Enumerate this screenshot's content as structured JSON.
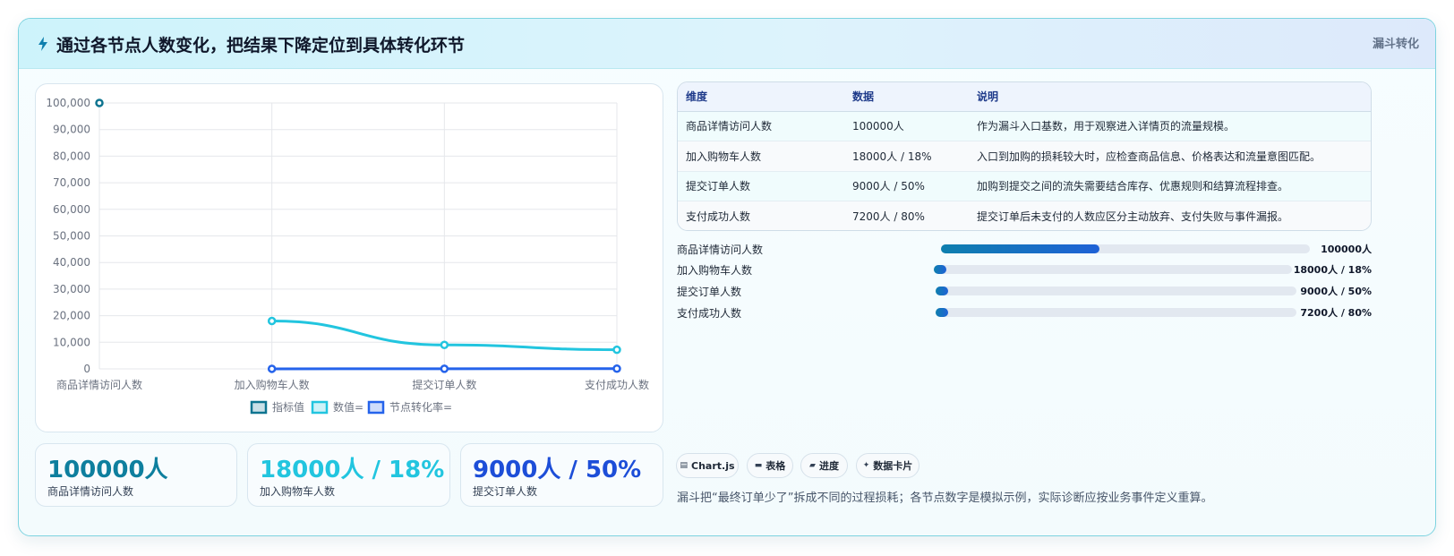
{
  "header": {
    "icon": "lightning-icon",
    "title": "通过各节点人数变化，把结果下降定位到具体转化环节",
    "tag": "漏斗转化"
  },
  "chart_data": {
    "type": "line",
    "categories": [
      "商品详情访问人数",
      "加入购物车人数",
      "提交订单人数",
      "支付成功人数"
    ],
    "series": [
      {
        "name": "指标值",
        "values": [
          100000,
          null,
          null,
          null
        ],
        "color": "#0e7490"
      },
      {
        "name": "数值=",
        "values": [
          null,
          18000,
          9000,
          7200
        ],
        "color": "#22c5df"
      },
      {
        "name": "节点转化率=",
        "values": [
          null,
          18,
          50,
          80
        ],
        "color": "#2563eb"
      }
    ],
    "y_ticks": [
      "0",
      "10,000",
      "20,000",
      "30,000",
      "40,000",
      "50,000",
      "60,000",
      "70,000",
      "80,000",
      "90,000",
      "100,000"
    ],
    "ylim": [
      0,
      100000
    ],
    "grid": true,
    "legend": "bottom"
  },
  "stats": [
    {
      "value": "100000人",
      "label": "商品详情访问人数",
      "color": "#0e7f9e"
    },
    {
      "value": "18000人 / 18%",
      "label": "加入购物车人数",
      "color": "#22c5df"
    },
    {
      "value": "9000人 / 50%",
      "label": "提交订单人数",
      "color": "#1d4ed8"
    }
  ],
  "table": {
    "headers": [
      "维度",
      "数据",
      "说明"
    ],
    "rows": [
      [
        "商品详情访问人数",
        "100000人",
        "作为漏斗入口基数，用于观察进入详情页的流量规模。"
      ],
      [
        "加入购物车人数",
        "18000人 / 18%",
        "入口到加购的损耗较大时，应检查商品信息、价格表达和流量意图匹配。"
      ],
      [
        "提交订单人数",
        "9000人 / 50%",
        "加购到提交之间的流失需要结合库存、优惠规则和结算流程排查。"
      ],
      [
        "支付成功人数",
        "7200人 / 80%",
        "提交订单后未支付的人数应区分主动放弃、支付失败与事件漏报。"
      ]
    ]
  },
  "progress": [
    {
      "label": "商品详情访问人数",
      "value": "100000人",
      "fraction": 0.43
    },
    {
      "label": "加入购物车人数",
      "value": "18000人 / 18%",
      "fraction": 0.033
    },
    {
      "label": "提交订单人数",
      "value": "9000人 / 50%",
      "fraction": 0.033
    },
    {
      "label": "支付成功人数",
      "value": "7200人 / 80%",
      "fraction": 0.033
    }
  ],
  "chips": [
    {
      "icon": "chart-icon",
      "label": "Chart.js"
    },
    {
      "icon": "table-icon",
      "label": "表格"
    },
    {
      "icon": "folder-icon",
      "label": "进度"
    },
    {
      "icon": "sparkle-icon",
      "label": "数据卡片"
    }
  ],
  "footnote": "漏斗把“最终订单少了”拆成不同的过程损耗；各节点数字是模拟示例，实际诊断应按业务事件定义重算。"
}
